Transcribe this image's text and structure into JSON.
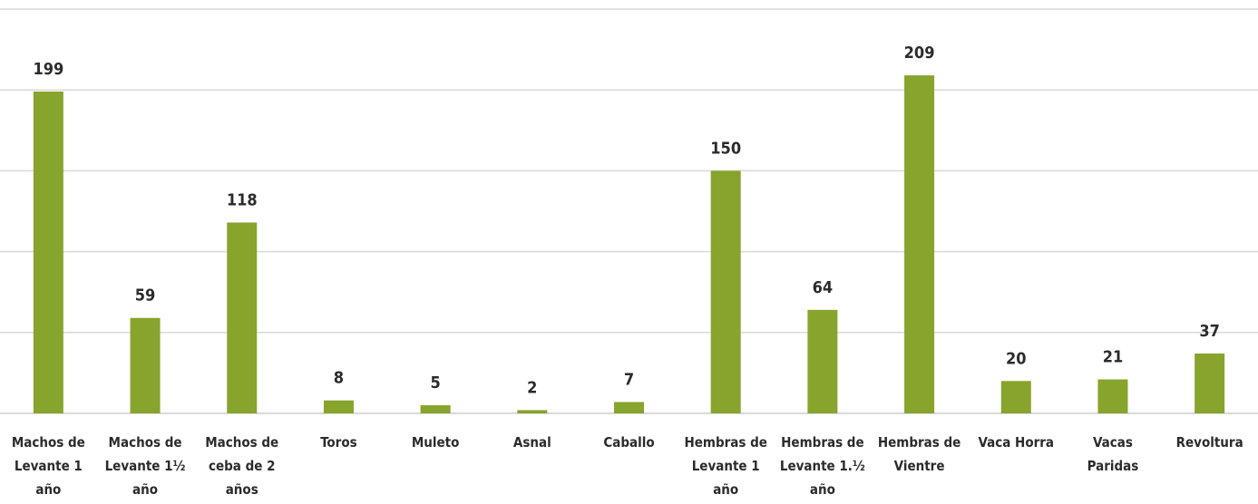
{
  "chart_data": {
    "type": "bar",
    "title": "",
    "xlabel": "",
    "ylabel": "",
    "ylim": [
      0,
      250
    ],
    "grid": true,
    "legend": "none",
    "bar_color": "#87a42c",
    "categories": [
      "Machos de Levante 1 año",
      "Machos de Levante 1½ año",
      "Machos de ceba de 2 años",
      "Toros",
      "Muleto",
      "Asnal",
      "Caballo",
      "Hembras de Levante 1 año",
      "Hembras de Levante 1.½ año",
      "Hembras de Vientre",
      "Vaca Horra",
      "Vacas Paridas",
      "Revoltura"
    ],
    "values": [
      199,
      59,
      118,
      8,
      5,
      2,
      7,
      150,
      64,
      209,
      20,
      21,
      37
    ]
  }
}
